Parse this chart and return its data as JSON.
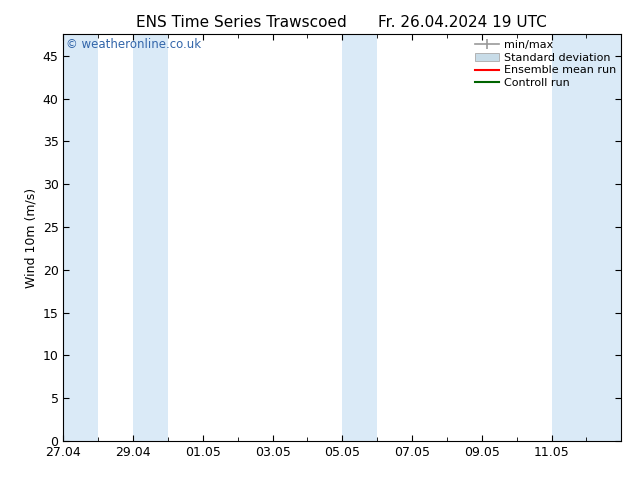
{
  "title": "ENS Time Series Trawscoed",
  "title_right": "Fr. 26.04.2024 19 UTC",
  "ylabel": "Wind 10m (m/s)",
  "watermark": "© weatheronline.co.uk",
  "ylim": [
    0,
    47.5
  ],
  "yticks": [
    0,
    5,
    10,
    15,
    20,
    25,
    30,
    35,
    40,
    45
  ],
  "xlim": [
    0,
    16
  ],
  "xtick_labels": [
    "27.04",
    "29.04",
    "01.05",
    "03.05",
    "05.05",
    "07.05",
    "09.05",
    "11.05"
  ],
  "xtick_positions": [
    0,
    2,
    4,
    6,
    8,
    10,
    12,
    14
  ],
  "shade_bands": [
    [
      0,
      1
    ],
    [
      2,
      3
    ],
    [
      8,
      9
    ],
    [
      14,
      16
    ]
  ],
  "background_color": "#ffffff",
  "shade_color": "#daeaf7",
  "legend_items": [
    {
      "label": "min/max",
      "color": "#999999",
      "style": "errorbar"
    },
    {
      "label": "Standard deviation",
      "color": "#c8dce8",
      "style": "box"
    },
    {
      "label": "Ensemble mean run",
      "color": "#ff0000",
      "style": "line"
    },
    {
      "label": "Controll run",
      "color": "#006400",
      "style": "line"
    }
  ],
  "font_family": "DejaVu Sans",
  "title_fontsize": 11,
  "axis_fontsize": 9,
  "tick_fontsize": 9,
  "watermark_color": "#3366aa",
  "watermark_fontsize": 8.5,
  "legend_fontsize": 8
}
